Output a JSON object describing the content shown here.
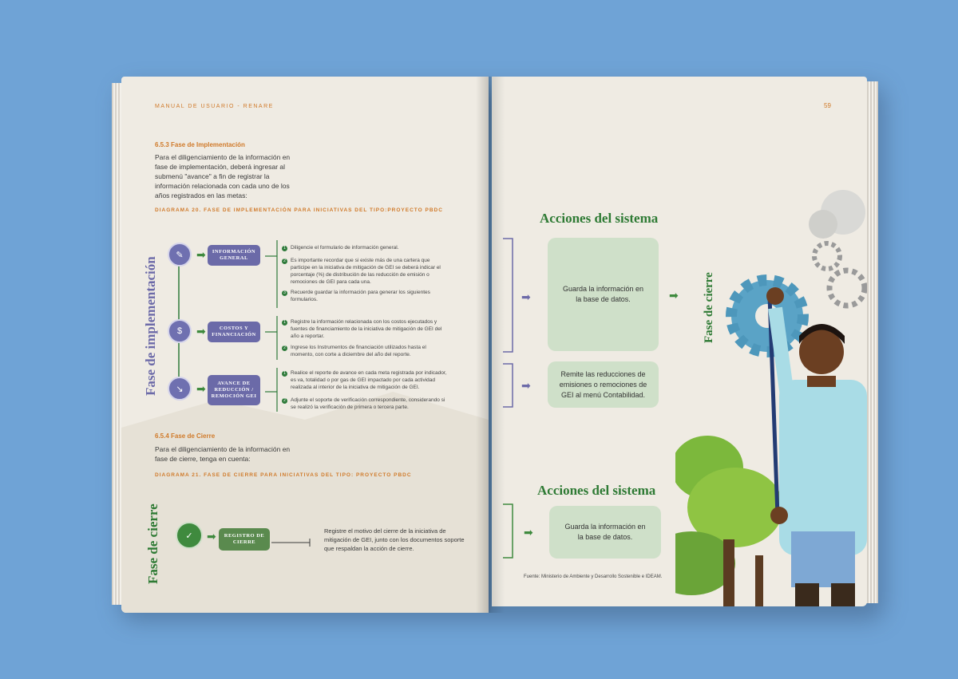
{
  "colors": {
    "background": "#6fa3d6",
    "page": "#efebe3",
    "purple": "#6c6aa8",
    "green": "#3f8a3e",
    "orange": "#d07a2a",
    "card": "#cfe0c9"
  },
  "left": {
    "header": "MANUAL DE USUARIO - RENARE",
    "section1_title": "6.5.3 Fase de Implementación",
    "section1_body": "Para el diligenciamiento de la información en fase de implementación, deberá ingresar al submenú \"avance\" a fin de registrar la información relacionada con cada uno de los años registrados en las metas:",
    "diagram20_caption": "DIAGRAMA 20. FASE DE IMPLEMENTACIÓN PARA INICIATIVAS DEL TIPO:PROYECTO PBDC",
    "vertical1": "Fase de implementación",
    "steps": [
      {
        "label": "INFORMACIÓN GENERAL",
        "icon": "clipboard-icon",
        "items": [
          {
            "n": "1",
            "text": "Diligencie el formulario de información general."
          },
          {
            "n": "2",
            "text": "Es importante recordar que si existe más de una cartera que participe en la iniciativa de mitigación de GEI se deberá indicar el porcentaje (%) de distribución de las reducción de emisión o remociones de GEI para cada una."
          },
          {
            "n": "3",
            "text": "Recuerde guardar la información para generar los siguientes formularios."
          }
        ]
      },
      {
        "label": "COSTOS Y FINANCIACIÓN",
        "icon": "coin-icon",
        "items": [
          {
            "n": "1",
            "text": "Registre la información relacionada con los costos ejecutados y fuentes de financiamiento de la iniciativa de mitigación de GEI del año a reportar."
          },
          {
            "n": "2",
            "text": "Ingrese los Instrumentos de financiación utilizados hasta el momento, con corte a diciembre del año del reporte."
          }
        ]
      },
      {
        "label": "AVANCE DE REDUCCIÓN / REMOCIÓN GEI",
        "icon": "trend-down-icon",
        "items": [
          {
            "n": "1",
            "text": "Realice el reporte de avance en cada meta registrada por indicador, es va, totalidad o por gas de GEI impactado por cada actividad realizada al interior de la iniciativa de mitigación de GEI."
          },
          {
            "n": "2",
            "text": "Adjunte el soporte de verificación correspondiente, considerando si se realizó la verificación de primera o tercera parte."
          }
        ]
      }
    ],
    "section2_title": "6.5.4 Fase de Cierre",
    "section2_body": "Para el diligenciamiento de la información en fase de cierre, tenga en cuenta:",
    "diagram21_caption": "DIAGRAMA 21. FASE DE CIERRE PARA INICIATIVAS DEL TIPO: PROYECTO PBDC",
    "vertical2": "Fase de cierre",
    "cierre_label": "REGISTRO DE CIERRE",
    "cierre_text": "Registre el motivo del cierre de la iniciativa de mitigación de GEI, junto con los documentos soporte que respaldan la acción de cierre."
  },
  "right": {
    "page_number": "59",
    "acciones_title_1": "Acciones del sistema",
    "card1": "Guarda la información en la base de datos.",
    "card2": "Remite las reducciones de emisiones o remociones de GEI al menú Contabilidad.",
    "vertical": "Fase de cierre",
    "acciones_title_2": "Acciones del sistema",
    "card3": "Guarda la información en la base de datos.",
    "source": "Fuente: Ministerio de Ambiente y Desarrollo Sostenible e IDEAM."
  }
}
